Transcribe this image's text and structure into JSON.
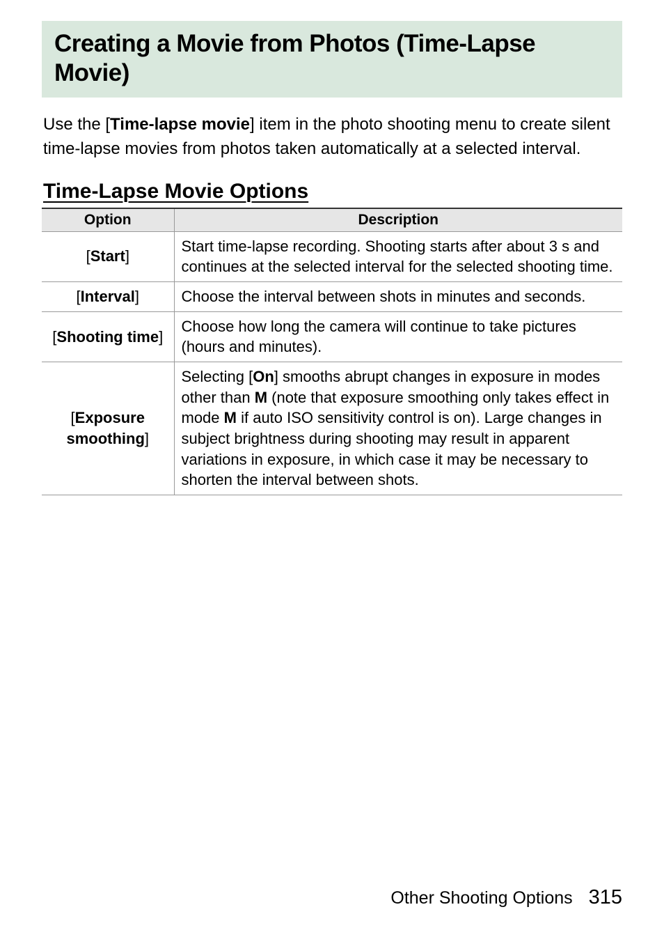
{
  "heading": "Creating a Movie from Photos (Time-Lapse Movie)",
  "intro": {
    "p1a": "Use the [",
    "p1b": "Time-lapse movie",
    "p1c": "] item in the photo shooting menu to create silent time-lapse movies from photos taken automatically at a selected interval."
  },
  "subheading": "Time-Lapse Movie Options",
  "table": {
    "headers": {
      "option": "Option",
      "description": "Description"
    },
    "rows": [
      {
        "option": "Start",
        "desc_parts": [
          {
            "t": "Start time-lapse recording. Shooting starts after about 3 s and continues at the selected interval for the selected shooting time.",
            "b": false
          }
        ]
      },
      {
        "option": "Interval",
        "desc_parts": [
          {
            "t": "Choose the interval between shots in minutes and seconds.",
            "b": false
          }
        ]
      },
      {
        "option": "Shooting time",
        "desc_parts": [
          {
            "t": "Choose how long the camera will continue to take pictures (hours and minutes).",
            "b": false
          }
        ]
      },
      {
        "option": "Exposure smoothing",
        "desc_parts": [
          {
            "t": "Selecting [",
            "b": false
          },
          {
            "t": "On",
            "b": true
          },
          {
            "t": "] smooths abrupt changes in exposure in modes other than ",
            "b": false
          },
          {
            "t": "M",
            "b": true
          },
          {
            "t": " (note that exposure smoothing only takes effect in mode ",
            "b": false
          },
          {
            "t": "M",
            "b": true
          },
          {
            "t": " if auto ISO sensitivity control is on). Large changes in subject brightness during shooting may result in apparent variations in exposure, in which case it may be necessary to shorten the interval between shots.",
            "b": false
          }
        ]
      }
    ]
  },
  "footer": {
    "section": "Other Shooting Options",
    "page": "315"
  },
  "colors": {
    "heading_bg": "#d9e8dd",
    "table_header_bg": "#e6e6e6",
    "border_dark": "#333333",
    "border_light": "#999999",
    "text": "#000000",
    "bg": "#ffffff"
  },
  "fontsizes": {
    "h1": 35,
    "intro": 24,
    "h2": 30,
    "th": 21,
    "td": 22,
    "footer": 25,
    "page": 29
  }
}
